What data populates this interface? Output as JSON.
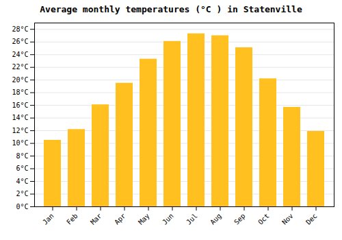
{
  "chart_data": {
    "type": "bar",
    "title": "Average monthly temperatures (°C ) in Statenville",
    "categories": [
      "Jan",
      "Feb",
      "Mar",
      "Apr",
      "May",
      "Jun",
      "Jul",
      "Aug",
      "Sep",
      "Oct",
      "Nov",
      "Dec"
    ],
    "values": [
      10.5,
      12.2,
      16.1,
      19.5,
      23.3,
      26.1,
      27.3,
      27.0,
      25.1,
      20.2,
      15.7,
      11.9
    ],
    "color": "#FFC020",
    "ylim": [
      0,
      29
    ],
    "yticks": [
      {
        "value": 0,
        "label": "0°C"
      },
      {
        "value": 2,
        "label": "2°C"
      },
      {
        "value": 4,
        "label": "4°C"
      },
      {
        "value": 6,
        "label": "6°C"
      },
      {
        "value": 8,
        "label": "8°C"
      },
      {
        "value": 10,
        "label": "10°C"
      },
      {
        "value": 12,
        "label": "12°C"
      },
      {
        "value": 14,
        "label": "14°C"
      },
      {
        "value": 16,
        "label": "16°C"
      },
      {
        "value": 18,
        "label": "18°C"
      },
      {
        "value": 20,
        "label": "20°C"
      },
      {
        "value": 22,
        "label": "22°C"
      },
      {
        "value": 24,
        "label": "24°C"
      },
      {
        "value": 26,
        "label": "26°C"
      },
      {
        "value": 28,
        "label": "28°C"
      }
    ],
    "grid": true
  }
}
